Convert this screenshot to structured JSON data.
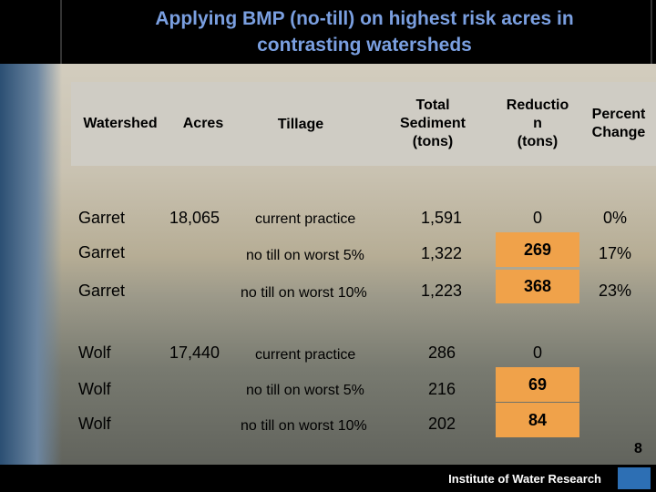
{
  "title_line1": "Applying BMP (no-till) on highest risk acres in",
  "title_line2": "contrasting watersheds",
  "headers": {
    "watershed": "Watershed",
    "acres": "Acres",
    "tillage": "Tillage",
    "total_sediment": [
      "Total",
      "Sediment",
      "(tons)"
    ],
    "reduction": [
      "Reductio",
      "n",
      "(tons)"
    ],
    "percent_change": [
      "Percent",
      "Change"
    ]
  },
  "rows": [
    {
      "watershed": "Garret",
      "acres": "18,065",
      "tillage": "current practice",
      "sediment": "1,591",
      "reduction": "0",
      "percent": "0%",
      "highlight": false
    },
    {
      "watershed": "Garret",
      "acres": "",
      "tillage": "no till on worst 5%",
      "sediment": "1,322",
      "reduction": "269",
      "percent": "17%",
      "highlight": true
    },
    {
      "watershed": "Garret",
      "acres": "",
      "tillage": "no till on worst 10%",
      "sediment": "1,223",
      "reduction": "368",
      "percent": "23%",
      "highlight": true
    },
    {
      "watershed": "Wolf",
      "acres": "17,440",
      "tillage": "current practice",
      "sediment": "286",
      "reduction": "0",
      "percent": "",
      "highlight": false
    },
    {
      "watershed": "Wolf",
      "acres": "",
      "tillage": "no till on worst 5%",
      "sediment": "216",
      "reduction": "69",
      "percent": "",
      "highlight": true
    },
    {
      "watershed": "Wolf",
      "acres": "",
      "tillage": "no till on worst 10%",
      "sediment": "202",
      "reduction": "84",
      "percent": "",
      "highlight": true
    }
  ],
  "page_number": "8",
  "footer_text": "Institute of Water Research",
  "colors": {
    "title": "#7a9fe0",
    "highlight": "#f0a24a",
    "header_band": "#cfccc4"
  }
}
